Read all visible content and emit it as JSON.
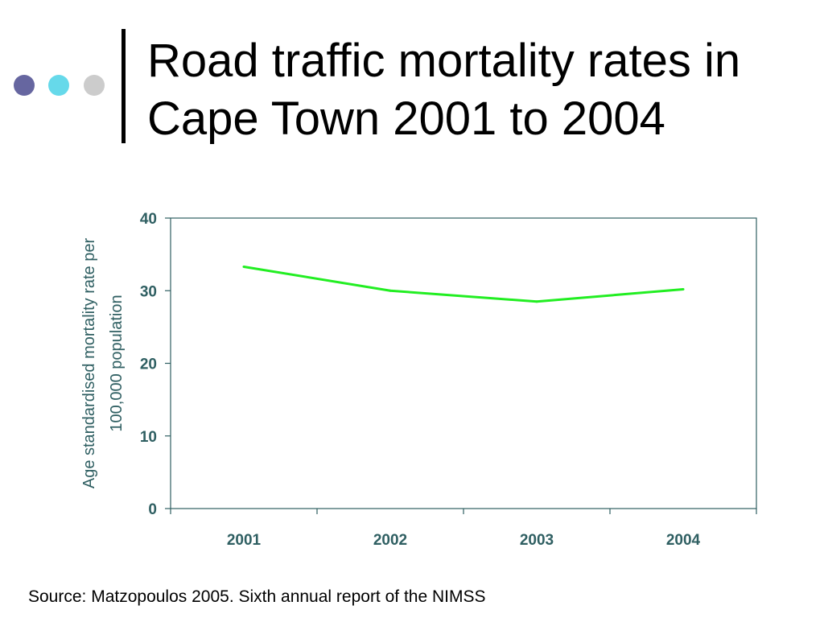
{
  "slide": {
    "title_line1": "Road traffic mortality rates in",
    "title_line2": "Cape Town 2001 to 2004",
    "source": "Source: Matzopoulos 2005. Sixth annual report of the NIMSS"
  },
  "decor": {
    "dot_colors": [
      "#6666a0",
      "#66d9ea",
      "#cccccc"
    ]
  },
  "colors": {
    "axis": "#2f5f62",
    "line": "#22ee22"
  },
  "chart_data": {
    "type": "line",
    "categories": [
      "2001",
      "2002",
      "2003",
      "2004"
    ],
    "series": [
      {
        "values": [
          33.3,
          30.0,
          28.5,
          30.2
        ]
      }
    ],
    "ylabel_lines": [
      "Age standardised mortality rate per",
      "100,000 population"
    ],
    "yticks": [
      "0",
      "10",
      "20",
      "30",
      "40"
    ],
    "ylim": [
      0,
      40
    ],
    "grid": false,
    "legend": "none"
  }
}
